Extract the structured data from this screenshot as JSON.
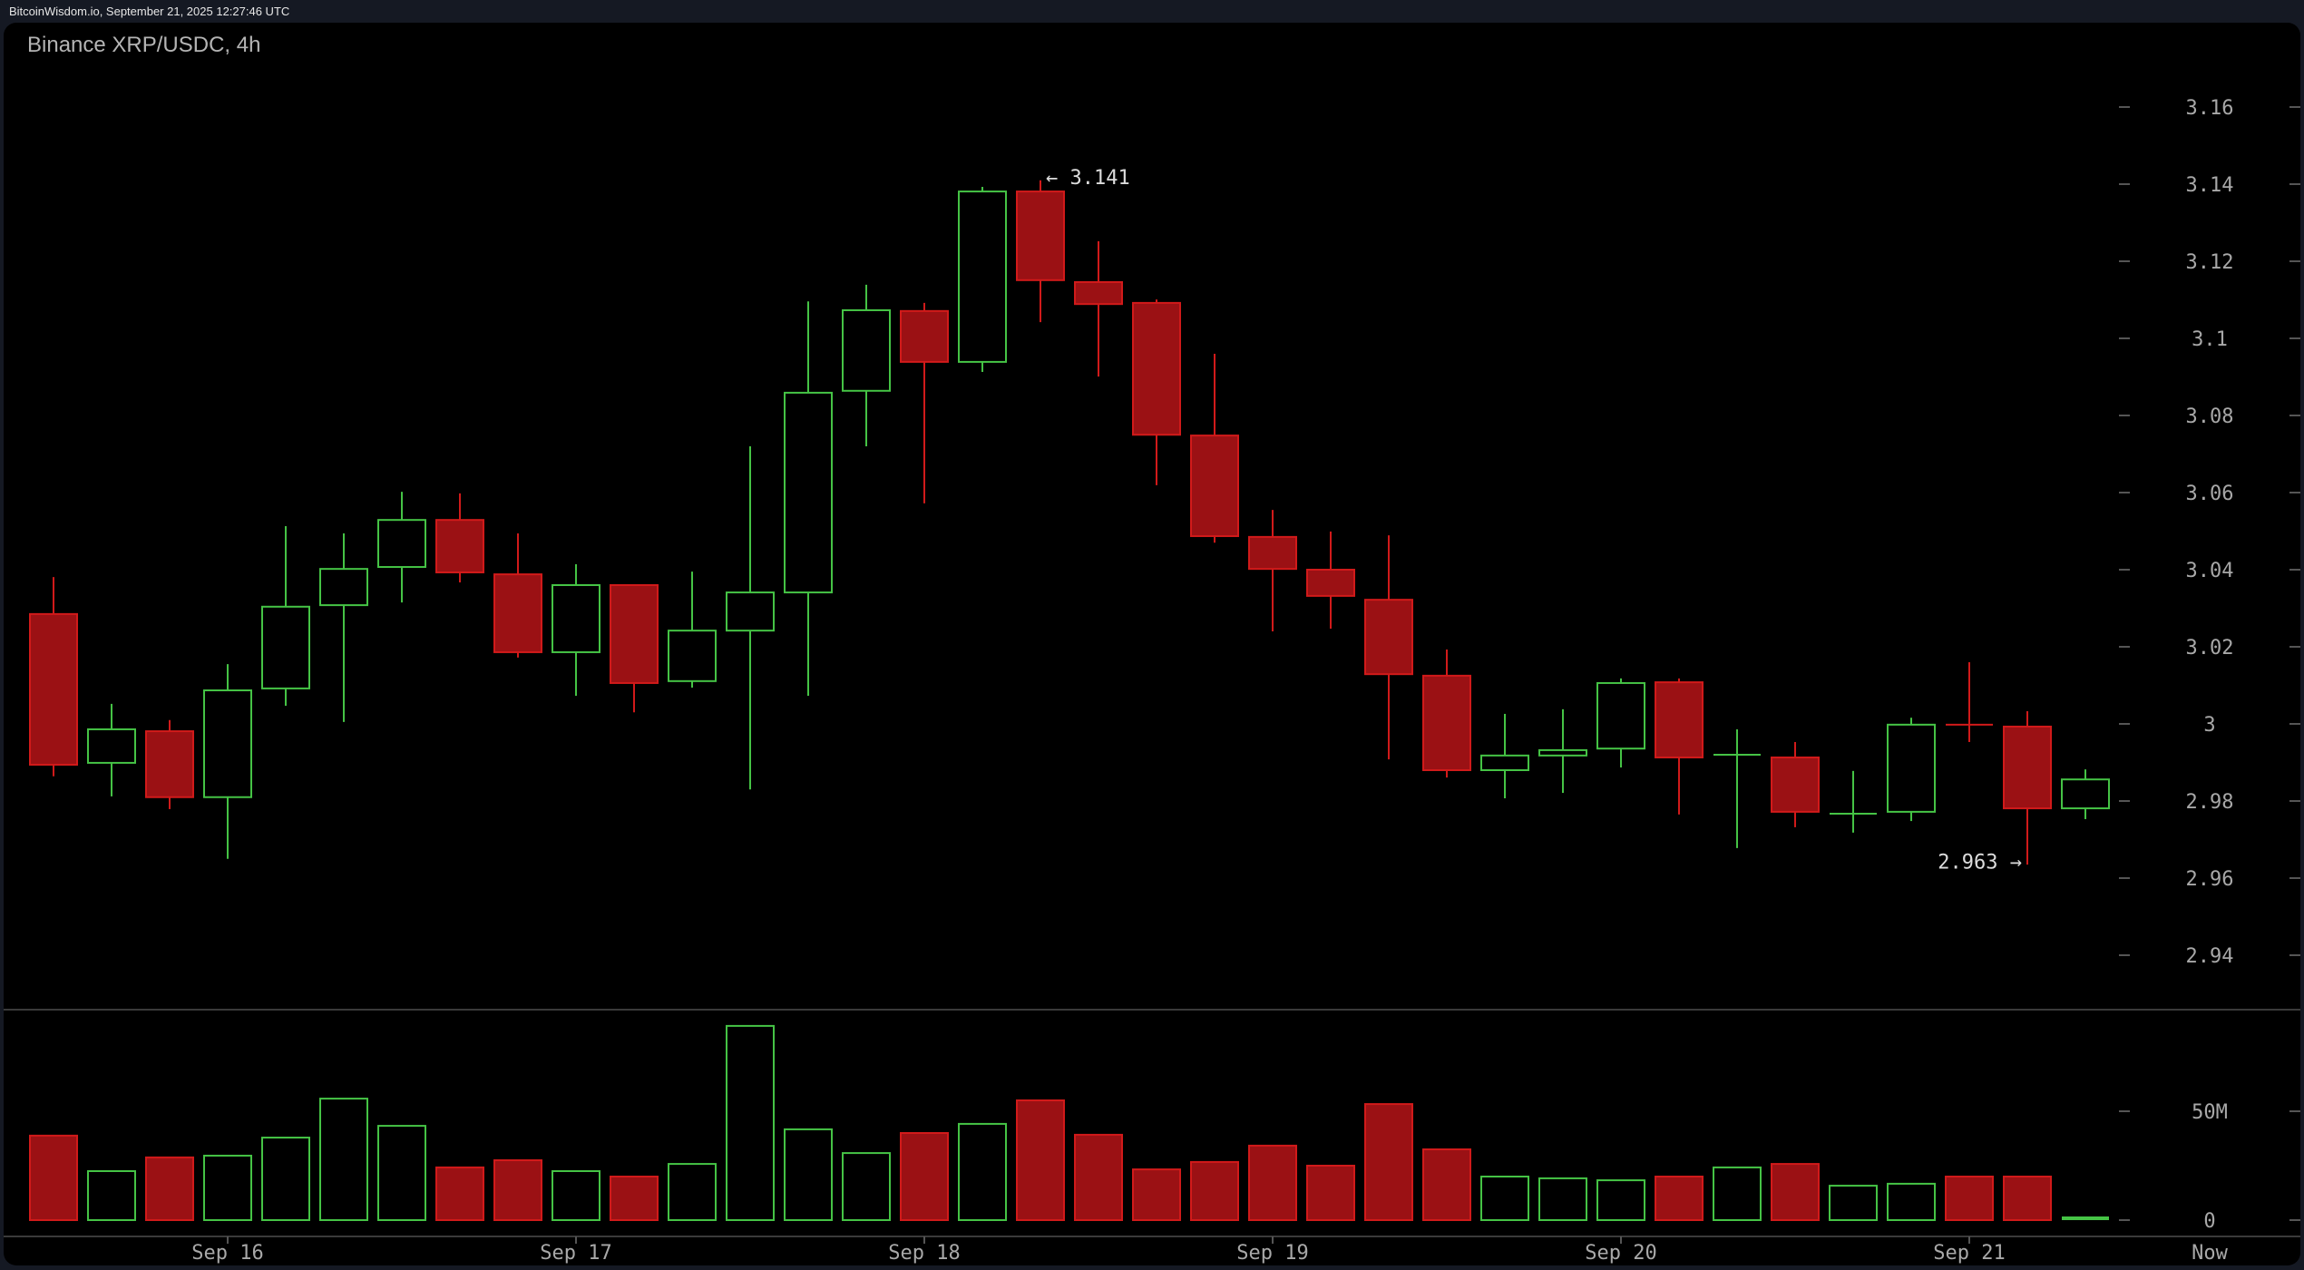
{
  "header": {
    "source_line": "BitcoinWisdom.io, September 21, 2025 12:27:46 UTC"
  },
  "chart": {
    "title": "Binance XRP/USDC, 4h"
  },
  "colors": {
    "up": "#45c345",
    "down_fill": "#9b1114",
    "down_border": "#d11a1a",
    "axis_text": "#a8a8a8",
    "annotation": "#dcdcdc",
    "grid_line": "#3a3a3a",
    "background": "#000000",
    "frame": "#151923"
  },
  "chart_data": {
    "type": "candlestick",
    "title": "Binance XRP/USDC, 4h",
    "price_axis": {
      "ticks": [
        3.16,
        3.14,
        3.12,
        3.1,
        3.08,
        3.06,
        3.04,
        3.02,
        3,
        2.98,
        2.96,
        2.94
      ],
      "tick_labels": [
        "3.16",
        "3.14",
        "3.12",
        "3.1",
        "3.08",
        "3.06",
        "3.04",
        "3.02",
        "3",
        "2.98",
        "2.96",
        "2.94"
      ]
    },
    "volume_axis": {
      "ticks": [
        50,
        0
      ],
      "tick_labels": [
        "50M",
        "0"
      ],
      "unit": "M"
    },
    "x_axis": {
      "labels": [
        {
          "text": "Sep 16",
          "candle_index": 3
        },
        {
          "text": "Sep 17",
          "candle_index": 9
        },
        {
          "text": "Sep 18",
          "candle_index": 15
        },
        {
          "text": "Sep 19",
          "candle_index": 21
        },
        {
          "text": "Sep 20",
          "candle_index": 27
        },
        {
          "text": "Sep 21",
          "candle_index": 33
        }
      ],
      "now_label": "Now"
    },
    "annotations": [
      {
        "text": "← 3.141",
        "type": "high",
        "value": 3.141,
        "candle_index": 17
      },
      {
        "text": "2.963 →",
        "type": "low",
        "value": 2.963,
        "candle_index": 34
      }
    ],
    "candles": [
      {
        "o": 3.0285,
        "h": 3.0381,
        "l": 2.9864,
        "c": 2.9894,
        "v": 38.8
      },
      {
        "o": 2.9899,
        "h": 3.0052,
        "l": 2.9812,
        "c": 2.9986,
        "v": 22.5
      },
      {
        "o": 2.9981,
        "h": 3.001,
        "l": 2.9779,
        "c": 2.981,
        "v": 28.8
      },
      {
        "o": 2.981,
        "h": 3.0155,
        "l": 2.965,
        "c": 3.0087,
        "v": 29.6
      },
      {
        "o": 3.0092,
        "h": 3.0513,
        "l": 3.0047,
        "c": 3.0304,
        "v": 37.9
      },
      {
        "o": 3.0308,
        "h": 3.0494,
        "l": 3.0005,
        "c": 3.0402,
        "v": 55.8
      },
      {
        "o": 3.0407,
        "h": 3.0602,
        "l": 3.0315,
        "c": 3.0529,
        "v": 43.3
      },
      {
        "o": 3.0529,
        "h": 3.0598,
        "l": 3.0367,
        "c": 3.0393,
        "v": 24.2
      },
      {
        "o": 3.0388,
        "h": 3.0494,
        "l": 3.0172,
        "c": 3.0186,
        "v": 27.5
      },
      {
        "o": 3.0186,
        "h": 3.0414,
        "l": 3.0073,
        "c": 3.036,
        "v": 22.5
      },
      {
        "o": 3.036,
        "h": 3.0362,
        "l": 3.003,
        "c": 3.0106,
        "v": 20.0
      },
      {
        "o": 3.0111,
        "h": 3.0395,
        "l": 3.0094,
        "c": 3.0242,
        "v": 25.8
      },
      {
        "o": 3.0242,
        "h": 3.072,
        "l": 2.983,
        "c": 3.0341,
        "v": 89.2
      },
      {
        "o": 3.0341,
        "h": 3.1096,
        "l": 3.0073,
        "c": 3.0859,
        "v": 41.7
      },
      {
        "o": 3.0864,
        "h": 3.1139,
        "l": 3.072,
        "c": 3.1073,
        "v": 30.8
      },
      {
        "o": 3.1071,
        "h": 3.1092,
        "l": 3.0572,
        "c": 3.0939,
        "v": 40.0
      },
      {
        "o": 3.0939,
        "h": 3.1393,
        "l": 3.0913,
        "c": 3.1381,
        "v": 44.2
      },
      {
        "o": 3.1381,
        "h": 3.141,
        "l": 3.1042,
        "c": 3.1151,
        "v": 55.0
      },
      {
        "o": 3.1146,
        "h": 3.1252,
        "l": 3.0901,
        "c": 3.1089,
        "v": 39.2
      },
      {
        "o": 3.1092,
        "h": 3.1101,
        "l": 3.0619,
        "c": 3.075,
        "v": 23.3
      },
      {
        "o": 3.0748,
        "h": 3.096,
        "l": 3.047,
        "c": 3.0487,
        "v": 26.7
      },
      {
        "o": 3.0485,
        "h": 3.0555,
        "l": 3.024,
        "c": 3.0402,
        "v": 34.2
      },
      {
        "o": 3.04,
        "h": 3.0499,
        "l": 3.0247,
        "c": 3.0332,
        "v": 25.0
      },
      {
        "o": 3.0322,
        "h": 3.0489,
        "l": 2.9908,
        "c": 3.0129,
        "v": 53.3
      },
      {
        "o": 3.0125,
        "h": 3.0193,
        "l": 2.9861,
        "c": 2.988,
        "v": 32.5
      },
      {
        "o": 2.988,
        "h": 3.0026,
        "l": 2.9807,
        "c": 2.9918,
        "v": 20.0
      },
      {
        "o": 2.9918,
        "h": 3.0038,
        "l": 2.9821,
        "c": 2.9932,
        "v": 19.2
      },
      {
        "o": 2.9936,
        "h": 3.0118,
        "l": 2.9887,
        "c": 3.0106,
        "v": 18.3
      },
      {
        "o": 3.0108,
        "h": 3.0118,
        "l": 2.9765,
        "c": 2.9913,
        "v": 20.0
      },
      {
        "o": 2.9918,
        "h": 2.9986,
        "l": 2.9678,
        "c": 2.992,
        "v": 24.2
      },
      {
        "o": 2.9913,
        "h": 2.9953,
        "l": 2.9732,
        "c": 2.9772,
        "v": 25.8
      },
      {
        "o": 2.9767,
        "h": 2.9878,
        "l": 2.9718,
        "c": 2.9767,
        "v": 15.8
      },
      {
        "o": 2.9772,
        "h": 3.0016,
        "l": 2.9748,
        "c": 2.9998,
        "v": 16.7
      },
      {
        "o": 2.9998,
        "h": 3.016,
        "l": 2.9953,
        "c": 2.9998,
        "v": 20.0,
        "dir": "down"
      },
      {
        "o": 2.9993,
        "h": 3.0033,
        "l": 2.9635,
        "c": 2.9781,
        "v": 20.0
      },
      {
        "o": 2.9781,
        "h": 2.9882,
        "l": 2.9753,
        "c": 2.9856,
        "v": 1.0
      }
    ]
  }
}
